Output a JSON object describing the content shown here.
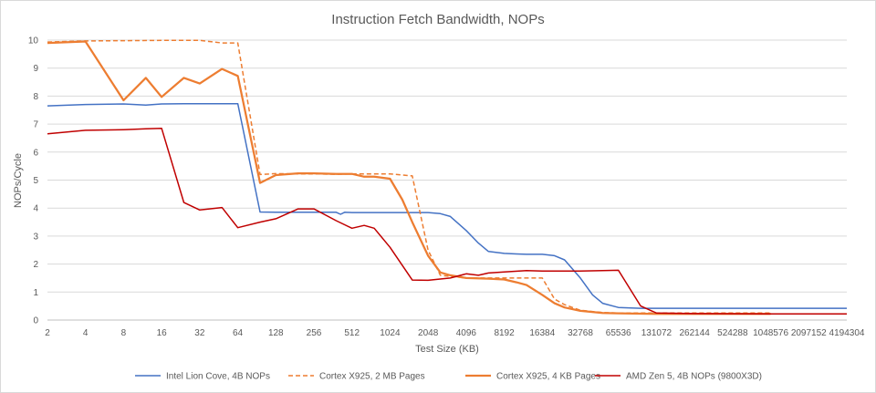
{
  "chart_data": {
    "type": "line",
    "title": "Instruction Fetch Bandwidth, NOPs",
    "xlabel": "Test Size (KB)",
    "ylabel": "NOPs/Cycle",
    "x_scale": "log2",
    "xlim": [
      2,
      4194304
    ],
    "ylim": [
      0,
      10
    ],
    "x_ticks": [
      "2",
      "4",
      "8",
      "16",
      "32",
      "64",
      "128",
      "256",
      "512",
      "1024",
      "2048",
      "4096",
      "8192",
      "16384",
      "32768",
      "65536",
      "131072",
      "262144",
      "524288",
      "1048576",
      "2097152",
      "4194304"
    ],
    "y_ticks": [
      "0",
      "1",
      "2",
      "3",
      "4",
      "5",
      "6",
      "7",
      "8",
      "9",
      "10"
    ],
    "grid": "horizontal",
    "legend": "bottom",
    "series": [
      {
        "name": "Intel Lion Cove, 4B NOPs",
        "color": "#4472c4",
        "dash": "solid",
        "x": [
          2,
          4,
          8,
          12,
          16,
          24,
          32,
          48,
          64,
          96,
          128,
          160,
          192,
          256,
          320,
          384,
          416,
          448,
          512,
          640,
          768,
          1024,
          1280,
          1536,
          2048,
          2560,
          3072,
          4096,
          5120,
          6144,
          8192,
          10240,
          12288,
          14336,
          16384,
          20480,
          24576,
          32768,
          40960,
          49152,
          65536,
          98304,
          131072,
          262144,
          524288,
          1048576,
          4194304
        ],
        "y": [
          7.65,
          7.7,
          7.72,
          7.68,
          7.72,
          7.73,
          7.73,
          7.73,
          7.73,
          3.86,
          3.85,
          3.85,
          3.85,
          3.85,
          3.85,
          3.85,
          3.78,
          3.85,
          3.84,
          3.84,
          3.84,
          3.84,
          3.84,
          3.84,
          3.84,
          3.8,
          3.7,
          3.2,
          2.75,
          2.45,
          2.38,
          2.36,
          2.35,
          2.35,
          2.35,
          2.3,
          2.15,
          1.5,
          0.9,
          0.6,
          0.45,
          0.42,
          0.42,
          0.42,
          0.42,
          0.42,
          0.42
        ]
      },
      {
        "name": "Cortex X925, 2 MB Pages",
        "color": "#ed7d31",
        "dash": "dashed",
        "x": [
          2,
          4,
          8,
          16,
          32,
          48,
          64,
          96,
          128,
          192,
          256,
          384,
          512,
          1024,
          1536,
          2048,
          2560,
          4096,
          8192,
          16384,
          20480,
          24576,
          32768,
          49152,
          65536,
          131072,
          262144,
          1048576
        ],
        "y": [
          9.93,
          9.97,
          9.98,
          9.99,
          9.99,
          9.9,
          9.9,
          5.2,
          5.23,
          5.22,
          5.22,
          5.21,
          5.22,
          5.22,
          5.15,
          2.5,
          1.6,
          1.5,
          1.5,
          1.5,
          0.75,
          0.55,
          0.35,
          0.27,
          0.25,
          0.25,
          0.25,
          0.25
        ]
      },
      {
        "name": "Cortex X925, 4 KB Pages",
        "color": "#ed7d31",
        "dash": "solid",
        "x": [
          2,
          4,
          8,
          12,
          16,
          24,
          32,
          48,
          64,
          96,
          128,
          192,
          256,
          384,
          512,
          640,
          768,
          1024,
          1280,
          1536,
          2048,
          2560,
          3072,
          4096,
          6144,
          8192,
          10240,
          12288,
          16384,
          20480,
          24576,
          32768,
          49152,
          65536,
          131072,
          262144,
          524288,
          1048576
        ],
        "y": [
          9.9,
          9.95,
          7.85,
          8.65,
          7.97,
          8.65,
          8.45,
          8.97,
          8.72,
          4.9,
          5.18,
          5.24,
          5.24,
          5.22,
          5.22,
          5.12,
          5.12,
          5.05,
          4.3,
          3.5,
          2.3,
          1.7,
          1.6,
          1.5,
          1.48,
          1.45,
          1.35,
          1.25,
          0.9,
          0.6,
          0.45,
          0.33,
          0.25,
          0.24,
          0.22,
          0.22,
          0.22,
          0.22
        ]
      },
      {
        "name": "AMD Zen 5, 4B NOPs (9800X3D)",
        "color": "#c00000",
        "dash": "solid",
        "x": [
          2,
          4,
          8,
          12,
          16,
          24,
          32,
          48,
          64,
          96,
          128,
          192,
          256,
          384,
          512,
          640,
          768,
          1024,
          1536,
          2048,
          3072,
          4096,
          5120,
          6144,
          8192,
          12288,
          16384,
          24576,
          32768,
          49152,
          65536,
          98304,
          131072,
          262144,
          1048576,
          4194304
        ],
        "y": [
          6.65,
          6.78,
          6.8,
          6.83,
          6.85,
          4.2,
          3.93,
          4.02,
          3.3,
          3.5,
          3.62,
          3.97,
          3.97,
          3.55,
          3.28,
          3.38,
          3.28,
          2.6,
          1.43,
          1.42,
          1.5,
          1.65,
          1.6,
          1.68,
          1.72,
          1.77,
          1.75,
          1.75,
          1.75,
          1.77,
          1.78,
          0.5,
          0.25,
          0.23,
          0.22,
          0.22
        ]
      }
    ]
  }
}
